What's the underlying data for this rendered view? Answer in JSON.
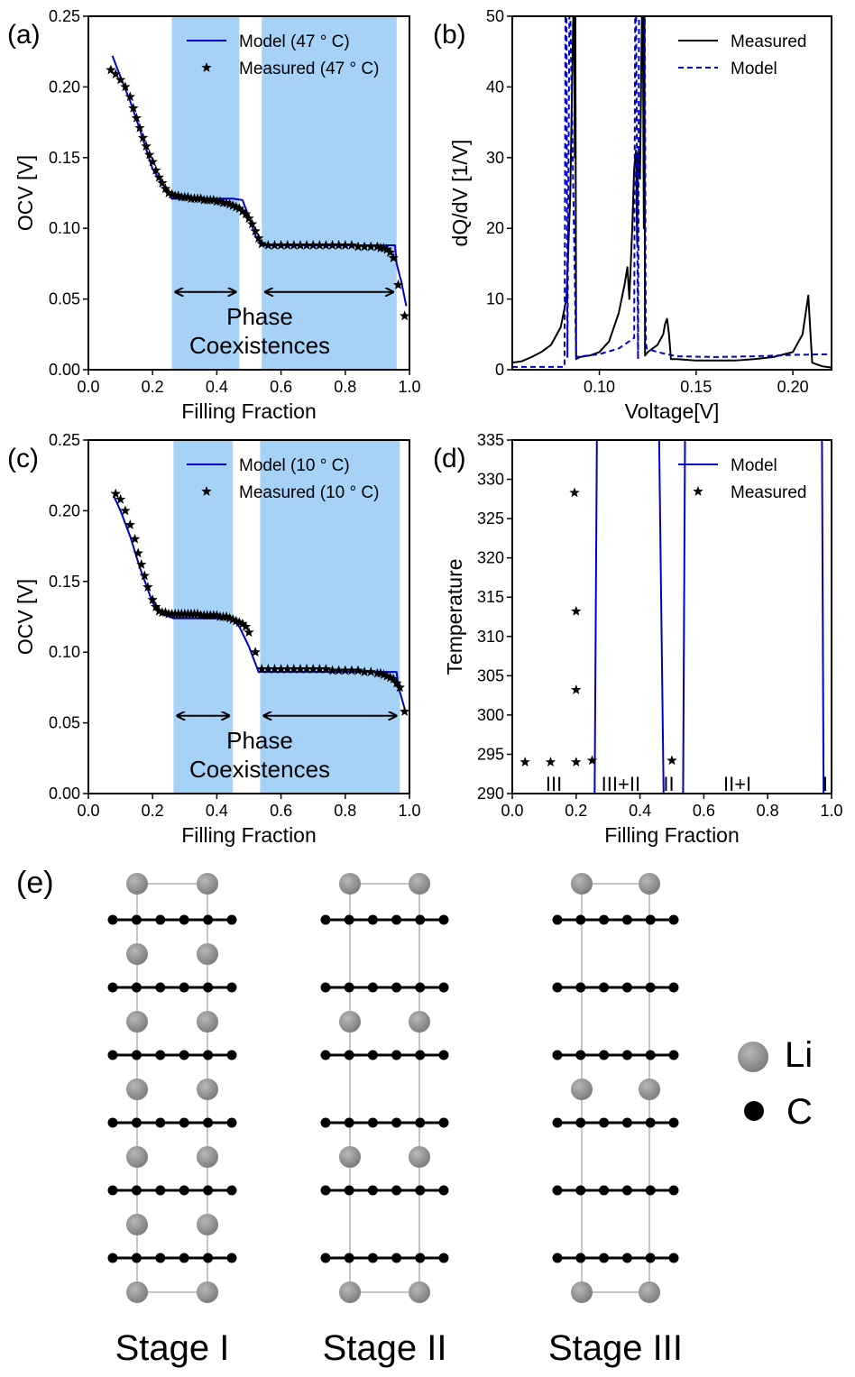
{
  "chart_data": [
    {
      "panel": "(a)",
      "type": "line",
      "xlabel": "Filling Fraction",
      "ylabel": "OCV [V]",
      "xlim": [
        0,
        1.0
      ],
      "ylim": [
        0,
        0.25
      ],
      "xticks": [
        "0.0",
        "0.2",
        "0.4",
        "0.6",
        "0.8",
        "1.0"
      ],
      "yticks": [
        "0.00",
        "0.05",
        "0.10",
        "0.15",
        "0.20",
        "0.25"
      ],
      "shaded_regions": [
        [
          0.26,
          0.47
        ],
        [
          0.54,
          0.96
        ]
      ],
      "arrows": [
        [
          0.26,
          0.47
        ],
        [
          0.54,
          0.96
        ]
      ],
      "arrow_y": 0.055,
      "annotation": [
        "Phase",
        "Coexistences"
      ],
      "legend": "top-center",
      "series": [
        {
          "name": "Model (47 ° C)",
          "style": "line",
          "color": "#0000cc",
          "x": [
            0.075,
            0.1,
            0.13,
            0.16,
            0.2,
            0.24,
            0.26,
            0.3,
            0.35,
            0.4,
            0.45,
            0.48,
            0.5,
            0.52,
            0.54,
            0.6,
            0.7,
            0.8,
            0.9,
            0.955,
            0.96,
            0.975,
            0.99
          ],
          "y": [
            0.222,
            0.207,
            0.19,
            0.17,
            0.142,
            0.128,
            0.121,
            0.121,
            0.121,
            0.121,
            0.121,
            0.12,
            0.108,
            0.095,
            0.088,
            0.088,
            0.088,
            0.088,
            0.088,
            0.088,
            0.075,
            0.062,
            0.045
          ]
        },
        {
          "name": "Measured (47 ° C)",
          "style": "star",
          "color": "#000000",
          "x": [
            0.07,
            0.085,
            0.1,
            0.115,
            0.13,
            0.14,
            0.15,
            0.16,
            0.17,
            0.18,
            0.19,
            0.2,
            0.21,
            0.22,
            0.23,
            0.24,
            0.25,
            0.26,
            0.27,
            0.28,
            0.29,
            0.3,
            0.31,
            0.32,
            0.33,
            0.34,
            0.35,
            0.36,
            0.37,
            0.38,
            0.39,
            0.4,
            0.41,
            0.42,
            0.43,
            0.44,
            0.45,
            0.46,
            0.47,
            0.48,
            0.49,
            0.5,
            0.51,
            0.52,
            0.53,
            0.54,
            0.56,
            0.58,
            0.6,
            0.62,
            0.64,
            0.66,
            0.68,
            0.7,
            0.72,
            0.74,
            0.76,
            0.78,
            0.8,
            0.82,
            0.84,
            0.86,
            0.88,
            0.9,
            0.91,
            0.92,
            0.93,
            0.94,
            0.95,
            0.965,
            0.985
          ],
          "y": [
            0.212,
            0.209,
            0.205,
            0.2,
            0.193,
            0.185,
            0.178,
            0.171,
            0.164,
            0.158,
            0.152,
            0.147,
            0.141,
            0.136,
            0.132,
            0.128,
            0.125,
            0.124,
            0.123,
            0.123,
            0.122,
            0.122,
            0.122,
            0.121,
            0.121,
            0.121,
            0.121,
            0.12,
            0.12,
            0.12,
            0.12,
            0.119,
            0.119,
            0.118,
            0.118,
            0.117,
            0.116,
            0.115,
            0.114,
            0.112,
            0.11,
            0.107,
            0.103,
            0.098,
            0.093,
            0.089,
            0.088,
            0.088,
            0.088,
            0.088,
            0.088,
            0.088,
            0.088,
            0.088,
            0.088,
            0.088,
            0.088,
            0.088,
            0.088,
            0.088,
            0.087,
            0.087,
            0.087,
            0.087,
            0.086,
            0.086,
            0.085,
            0.083,
            0.079,
            0.06,
            0.038
          ]
        }
      ]
    },
    {
      "panel": "(b)",
      "type": "line",
      "xlabel": "Voltage[V]",
      "ylabel": "dQ/dV [1/V]",
      "xlim": [
        0.055,
        0.22
      ],
      "ylim": [
        0,
        50
      ],
      "xticks": [
        "0.10",
        "0.15",
        "0.20"
      ],
      "xtick_values": [
        0.1,
        0.15,
        0.2
      ],
      "yticks": [
        "0",
        "10",
        "20",
        "30",
        "40",
        "50"
      ],
      "legend": "top-right",
      "series": [
        {
          "name": "Measured",
          "style": "solid",
          "color": "#000000",
          "x": [
            0.055,
            0.06,
            0.065,
            0.07,
            0.075,
            0.08,
            0.083,
            0.085,
            0.0865,
            0.087,
            0.0873,
            0.0876,
            0.088,
            0.09,
            0.095,
            0.1,
            0.105,
            0.11,
            0.113,
            0.1145,
            0.1155,
            0.117,
            0.118,
            0.119,
            0.1195,
            0.12,
            0.1205,
            0.121,
            0.122,
            0.1225,
            0.123,
            0.1233,
            0.1236,
            0.125,
            0.13,
            0.133,
            0.134,
            0.135,
            0.136,
            0.137,
            0.14,
            0.15,
            0.16,
            0.17,
            0.18,
            0.19,
            0.2,
            0.205,
            0.208,
            0.2085,
            0.21,
            0.215,
            0.22
          ],
          "y": [
            1,
            1.2,
            1.8,
            2.5,
            3.5,
            6,
            10,
            25,
            50,
            50,
            30,
            50,
            1.5,
            1.8,
            2,
            2.5,
            4,
            8,
            12,
            14.5,
            10,
            20,
            28.5,
            31,
            18,
            30,
            31,
            27,
            50,
            50,
            20,
            50,
            2,
            2.5,
            3.5,
            5,
            6.5,
            7.2,
            5,
            1.5,
            1.5,
            1.3,
            1.3,
            1.3,
            1.5,
            1.8,
            2.5,
            5,
            10.5,
            8,
            1,
            0.5,
            0.3
          ]
        },
        {
          "name": "Model",
          "style": "dashed",
          "color": "#0000cc",
          "x": [
            0.055,
            0.082,
            0.0825,
            0.083,
            0.0835,
            0.0845,
            0.085,
            0.088,
            0.1,
            0.11,
            0.118,
            0.1185,
            0.119,
            0.12,
            0.1205,
            0.1235,
            0.124,
            0.1245,
            0.13,
            0.14,
            0.16,
            0.18,
            0.2,
            0.22
          ],
          "y": [
            0.4,
            0.4,
            50,
            50,
            1.8,
            50,
            50,
            1.8,
            2.2,
            3,
            4.5,
            50,
            50,
            1.5,
            50,
            50,
            4,
            3,
            2.5,
            1.9,
            1.8,
            1.9,
            2.1,
            2.2
          ]
        }
      ]
    },
    {
      "panel": "(c)",
      "type": "line",
      "xlabel": "Filling Fraction",
      "ylabel": "OCV [V]",
      "xlim": [
        0,
        1.0
      ],
      "ylim": [
        0,
        0.25
      ],
      "xticks": [
        "0.0",
        "0.2",
        "0.4",
        "0.6",
        "0.8",
        "1.0"
      ],
      "yticks": [
        "0.00",
        "0.05",
        "0.10",
        "0.15",
        "0.20",
        "0.25"
      ],
      "shaded_regions": [
        [
          0.265,
          0.45
        ],
        [
          0.535,
          0.97
        ]
      ],
      "arrows": [
        [
          0.265,
          0.45
        ],
        [
          0.535,
          0.97
        ]
      ],
      "arrow_y": 0.055,
      "annotation": [
        "Phase",
        "Coexistences"
      ],
      "legend": "top-center",
      "series": [
        {
          "name": "Model (10 ° C)",
          "style": "line",
          "color": "#0000cc",
          "x": [
            0.08,
            0.1,
            0.13,
            0.16,
            0.2,
            0.23,
            0.265,
            0.3,
            0.35,
            0.4,
            0.45,
            0.47,
            0.5,
            0.53,
            0.6,
            0.7,
            0.8,
            0.9,
            0.96,
            0.965,
            0.98,
            0.99
          ],
          "y": [
            0.21,
            0.2,
            0.182,
            0.16,
            0.135,
            0.127,
            0.124,
            0.124,
            0.124,
            0.124,
            0.123,
            0.118,
            0.104,
            0.086,
            0.086,
            0.086,
            0.086,
            0.086,
            0.086,
            0.076,
            0.064,
            0.056
          ]
        },
        {
          "name": "Measured (10 ° C)",
          "style": "star",
          "color": "#000000",
          "x": [
            0.085,
            0.1,
            0.115,
            0.13,
            0.145,
            0.155,
            0.165,
            0.175,
            0.185,
            0.2,
            0.21,
            0.22,
            0.23,
            0.24,
            0.25,
            0.26,
            0.27,
            0.28,
            0.29,
            0.3,
            0.31,
            0.32,
            0.33,
            0.34,
            0.35,
            0.36,
            0.37,
            0.38,
            0.39,
            0.4,
            0.41,
            0.42,
            0.43,
            0.44,
            0.45,
            0.46,
            0.47,
            0.48,
            0.49,
            0.5,
            0.52,
            0.54,
            0.56,
            0.58,
            0.6,
            0.62,
            0.64,
            0.66,
            0.68,
            0.7,
            0.72,
            0.74,
            0.76,
            0.78,
            0.8,
            0.82,
            0.84,
            0.86,
            0.88,
            0.9,
            0.91,
            0.92,
            0.93,
            0.94,
            0.95,
            0.96,
            0.97,
            0.985
          ],
          "y": [
            0.212,
            0.208,
            0.2,
            0.19,
            0.18,
            0.17,
            0.162,
            0.154,
            0.146,
            0.137,
            0.132,
            0.129,
            0.128,
            0.128,
            0.127,
            0.127,
            0.127,
            0.127,
            0.127,
            0.127,
            0.127,
            0.127,
            0.127,
            0.127,
            0.126,
            0.126,
            0.126,
            0.126,
            0.126,
            0.126,
            0.125,
            0.125,
            0.125,
            0.124,
            0.123,
            0.122,
            0.121,
            0.12,
            0.118,
            0.114,
            0.1,
            0.088,
            0.088,
            0.088,
            0.088,
            0.088,
            0.088,
            0.088,
            0.088,
            0.088,
            0.088,
            0.088,
            0.087,
            0.087,
            0.087,
            0.087,
            0.087,
            0.086,
            0.086,
            0.085,
            0.085,
            0.084,
            0.083,
            0.082,
            0.081,
            0.078,
            0.075,
            0.058
          ]
        }
      ]
    },
    {
      "panel": "(d)",
      "type": "line",
      "xlabel": "Filling Fraction",
      "ylabel": "Temperature",
      "xlim": [
        0,
        1.0
      ],
      "ylim": [
        290,
        335
      ],
      "xticks": [
        "0.0",
        "0.2",
        "0.4",
        "0.6",
        "0.8",
        "1.0"
      ],
      "yticks": [
        "290",
        "295",
        "300",
        "305",
        "310",
        "315",
        "320",
        "325",
        "330",
        "335"
      ],
      "legend": "top-right",
      "region_labels": [
        {
          "x": 0.13,
          "text": "III"
        },
        {
          "x": 0.34,
          "text": "III+II"
        },
        {
          "x": 0.49,
          "text": "II"
        },
        {
          "x": 0.705,
          "text": "II+I"
        },
        {
          "x": 0.98,
          "text": "I"
        }
      ],
      "series": [
        {
          "name": "Model",
          "style": "line",
          "color": "#0000cc",
          "segments": [
            {
              "x": [
                0.258,
                0.265
              ],
              "y": [
                290,
                335
              ]
            },
            {
              "x": [
                0.474,
                0.46
              ],
              "y": [
                290,
                335
              ]
            },
            {
              "x": [
                0.535,
                0.541
              ],
              "y": [
                290,
                335
              ]
            },
            {
              "x": [
                0.975,
                0.97
              ],
              "y": [
                290,
                335
              ]
            }
          ]
        },
        {
          "name": "Measured",
          "style": "star",
          "color": "#000000",
          "x": [
            0.04,
            0.12,
            0.2,
            0.25,
            0.5,
            0.195,
            0.2,
            0.2
          ],
          "y": [
            294,
            294,
            294,
            294.2,
            294.2,
            328.3,
            313.2,
            303.2
          ]
        }
      ]
    },
    {
      "panel": "(e)",
      "type": "diagram",
      "stages": [
        "Stage I",
        "Stage II",
        "Stage III"
      ],
      "legend": [
        {
          "name": "Li",
          "color": "#8a8a8a"
        },
        {
          "name": "C",
          "color": "#000000"
        }
      ]
    }
  ]
}
